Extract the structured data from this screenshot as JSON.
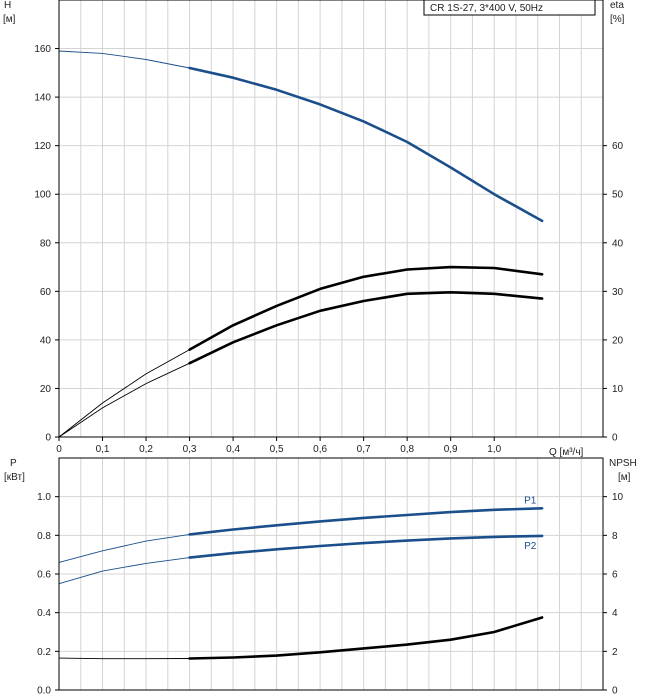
{
  "chart_data": [
    {
      "type": "line",
      "title": "CR 1S-27, 3*400 V, 50Hz",
      "xlabel": "Q [м³/ч]",
      "xlim": [
        0,
        1.25
      ],
      "xticks": [
        "0",
        "0,1",
        "0,2",
        "0,3",
        "0,4",
        "0,5",
        "0,6",
        "0,7",
        "0,8",
        "0,9",
        "1,0"
      ],
      "left_axis": {
        "label_line1": "H",
        "label_line2": "[м]",
        "ylim": [
          0,
          180
        ],
        "ticks": [
          "0",
          "20",
          "40",
          "60",
          "80",
          "100",
          "120",
          "140",
          "160"
        ]
      },
      "right_axis": {
        "label_line1": "eta",
        "label_line2": "[%]",
        "ylim": [
          0,
          90
        ],
        "ticks": [
          "0",
          "10",
          "20",
          "30",
          "40",
          "50",
          "60"
        ]
      },
      "grid": true,
      "series": [
        {
          "axis": "left",
          "color": "#1a4f8b",
          "x": [
            0,
            0.1,
            0.2,
            0.3,
            0.4,
            0.5,
            0.6,
            0.7,
            0.8,
            0.9,
            1.0,
            1.11
          ],
          "y": [
            159,
            158,
            155.5,
            152,
            148,
            143,
            137,
            130,
            121.5,
            111,
            100,
            89
          ],
          "operating_from": 0.3
        },
        {
          "axis": "right",
          "color": "#000000",
          "x": [
            0,
            0.1,
            0.2,
            0.3,
            0.4,
            0.5,
            0.6,
            0.7,
            0.8,
            0.9,
            1.0,
            1.11
          ],
          "y": [
            0,
            7,
            13,
            18,
            23,
            27,
            30.5,
            33,
            34.5,
            35,
            34.8,
            33.5
          ],
          "operating_from": 0.3
        },
        {
          "axis": "right",
          "color": "#000000",
          "x": [
            0,
            0.1,
            0.2,
            0.3,
            0.4,
            0.5,
            0.6,
            0.7,
            0.8,
            0.9,
            1.0,
            1.11
          ],
          "y": [
            0,
            6,
            11,
            15.2,
            19.5,
            23,
            26,
            28,
            29.5,
            29.8,
            29.5,
            28.5
          ],
          "operating_from": 0.3
        }
      ]
    },
    {
      "type": "line",
      "xlim": [
        0,
        1.25
      ],
      "left_axis": {
        "label_line1": "P",
        "label_line2": "[кВт]",
        "ylim": [
          0,
          1.2
        ],
        "ticks": [
          "0.0",
          "0.2",
          "0.4",
          "0.6",
          "0.8",
          "1.0"
        ]
      },
      "right_axis": {
        "label_line1": "NPSH",
        "label_line2": "[м]",
        "ylim": [
          0,
          12
        ],
        "ticks": [
          "0",
          "2",
          "4",
          "6",
          "8",
          "10"
        ]
      },
      "grid": true,
      "series": [
        {
          "name": "P1",
          "axis": "left",
          "color": "#1a4f8b",
          "x": [
            0,
            0.1,
            0.2,
            0.3,
            0.4,
            0.5,
            0.6,
            0.7,
            0.8,
            0.9,
            1.0,
            1.11
          ],
          "y": [
            0.66,
            0.72,
            0.77,
            0.805,
            0.83,
            0.852,
            0.872,
            0.89,
            0.905,
            0.92,
            0.932,
            0.94
          ],
          "operating_from": 0.3
        },
        {
          "name": "P2",
          "axis": "left",
          "color": "#1a4f8b",
          "x": [
            0,
            0.1,
            0.2,
            0.3,
            0.4,
            0.5,
            0.6,
            0.7,
            0.8,
            0.9,
            1.0,
            1.11
          ],
          "y": [
            0.55,
            0.615,
            0.655,
            0.685,
            0.708,
            0.728,
            0.745,
            0.76,
            0.773,
            0.784,
            0.792,
            0.797
          ],
          "operating_from": 0.3
        },
        {
          "axis": "right",
          "color": "#000000",
          "x": [
            0,
            0.1,
            0.2,
            0.3,
            0.4,
            0.5,
            0.6,
            0.7,
            0.8,
            0.9,
            1.0,
            1.11
          ],
          "y": [
            1.65,
            1.62,
            1.62,
            1.63,
            1.68,
            1.78,
            1.95,
            2.15,
            2.35,
            2.6,
            3.0,
            3.75
          ],
          "operating_from": 0.3
        }
      ]
    }
  ]
}
